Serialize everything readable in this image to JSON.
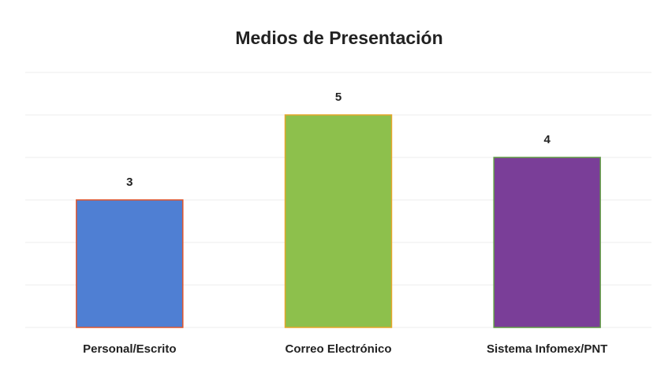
{
  "chart_data": {
    "type": "bar",
    "title": "Medios de Presentación",
    "categories": [
      "Personal/Escrito",
      "Correo Electrónico",
      "Sistema Infomex/PNT"
    ],
    "values": [
      3,
      5,
      4
    ],
    "colors": [
      "#4f7fd3",
      "#8dc04c",
      "#7a3e98"
    ],
    "edgecolors": [
      "#e0552b",
      "#e6a52a",
      "#5f9a44"
    ],
    "ylim": [
      0,
      6
    ],
    "yticks": [
      0,
      1,
      2,
      3,
      4,
      5,
      6
    ],
    "grid": true
  }
}
